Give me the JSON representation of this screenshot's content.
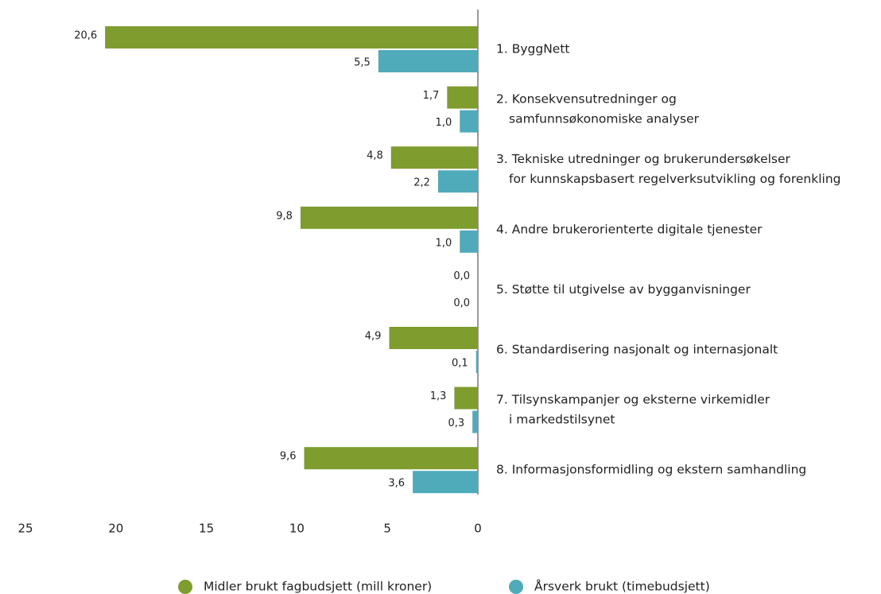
{
  "chart_data": {
    "type": "hbar",
    "categories": [
      [
        "1. ByggNett"
      ],
      [
        "2. Konsekvensutredninger og",
        "samfunnsøkonomiske analyser"
      ],
      [
        "3. Tekniske utredninger og brukerundersøkelser",
        "for kunnskapsbasert regelverksutvikling og forenkling"
      ],
      [
        "4. Andre brukerorienterte digitale tjenester"
      ],
      [
        "5. Støtte til utgivelse av bygganvisninger"
      ],
      [
        "6. Standardisering nasjonalt og internasjonalt"
      ],
      [
        "7. Tilsynskampanjer og eksterne virkemidler",
        "i markedstilsynet"
      ],
      [
        "8. Informasjonsformidling og ekstern samhandling"
      ]
    ],
    "series": [
      {
        "name": "Midler brukt fagbudsjett (mill kroner)",
        "color": "#7f9c2f",
        "values": [
          20.6,
          1.7,
          4.8,
          9.8,
          0.0,
          4.9,
          1.3,
          9.6
        ],
        "value_labels": [
          "20,6",
          "1,7",
          "4,8",
          "9,8",
          "0,0",
          "4,9",
          "1,3",
          "9,6"
        ]
      },
      {
        "name": "Årsverk brukt (timebudsjett)",
        "color": "#4fabba",
        "values": [
          5.5,
          1.0,
          2.2,
          1.0,
          0.0,
          0.1,
          0.3,
          3.6
        ],
        "value_labels": [
          "5,5",
          "1,0",
          "2,2",
          "1,0",
          "0,0",
          "0,1",
          "0,3",
          "3,6"
        ]
      }
    ],
    "xlim": [
      0,
      25
    ],
    "x_reversed": true,
    "xticks": [
      25,
      20,
      15,
      10,
      5,
      0
    ]
  }
}
